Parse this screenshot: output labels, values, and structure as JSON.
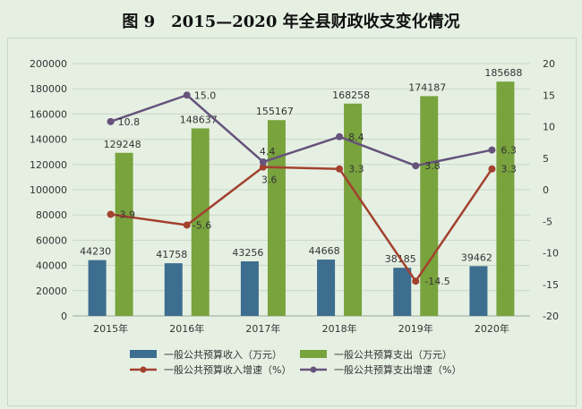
{
  "figure": {
    "number": "图 9",
    "title": "2015—2020 年全县财政收支变化情况"
  },
  "colors": {
    "revenue_bar": "#3e6e8f",
    "expenditure_bar": "#79a33d",
    "revenue_growth_line": "#a3412f",
    "expenditure_growth_line": "#66537c",
    "grid": "#c9d6c6",
    "background": "#e5f0e3"
  },
  "chart_data": {
    "type": "bar",
    "categories": [
      "2015年",
      "2016年",
      "2017年",
      "2018年",
      "2019年",
      "2020年"
    ],
    "ylim": [
      0,
      200000
    ],
    "yticks": [
      0,
      20000,
      40000,
      60000,
      80000,
      100000,
      120000,
      140000,
      160000,
      180000,
      200000
    ],
    "y2lim": [
      -20,
      20
    ],
    "y2ticks": [
      -20,
      -15,
      -10,
      -5,
      0,
      5,
      10,
      15,
      20
    ],
    "grid": true,
    "legend_position": "bottom",
    "series": [
      {
        "name": "一般公共预算收入（万元）",
        "type": "bar",
        "axis": "left",
        "values": [
          44230,
          41758,
          43256,
          44668,
          38185,
          39462
        ],
        "labels": [
          "44230",
          "41758",
          "43256",
          "44668",
          "38185",
          "39462"
        ]
      },
      {
        "name": "一般公共预算支出（万元）",
        "type": "bar",
        "axis": "left",
        "values": [
          129248,
          148637,
          155167,
          168258,
          174187,
          185688
        ],
        "labels": [
          "129248",
          "148637",
          "155167",
          "168258",
          "174187",
          "185688"
        ]
      },
      {
        "name": "一般公共预算收入增速（%）",
        "type": "line",
        "axis": "right",
        "values": [
          -3.9,
          -5.6,
          3.6,
          3.3,
          -14.5,
          3.3
        ],
        "labels": [
          "-3.9",
          "-5.6",
          "3.6",
          "3.3",
          "-14.5",
          "3.3"
        ]
      },
      {
        "name": "一般公共预算支出增速（%）",
        "type": "line",
        "axis": "right",
        "values": [
          10.8,
          15.0,
          4.4,
          8.4,
          3.8,
          6.3
        ],
        "labels": [
          "10.8",
          "15.0",
          "4.4",
          "8.4",
          "3.8",
          "6.3"
        ]
      }
    ]
  }
}
